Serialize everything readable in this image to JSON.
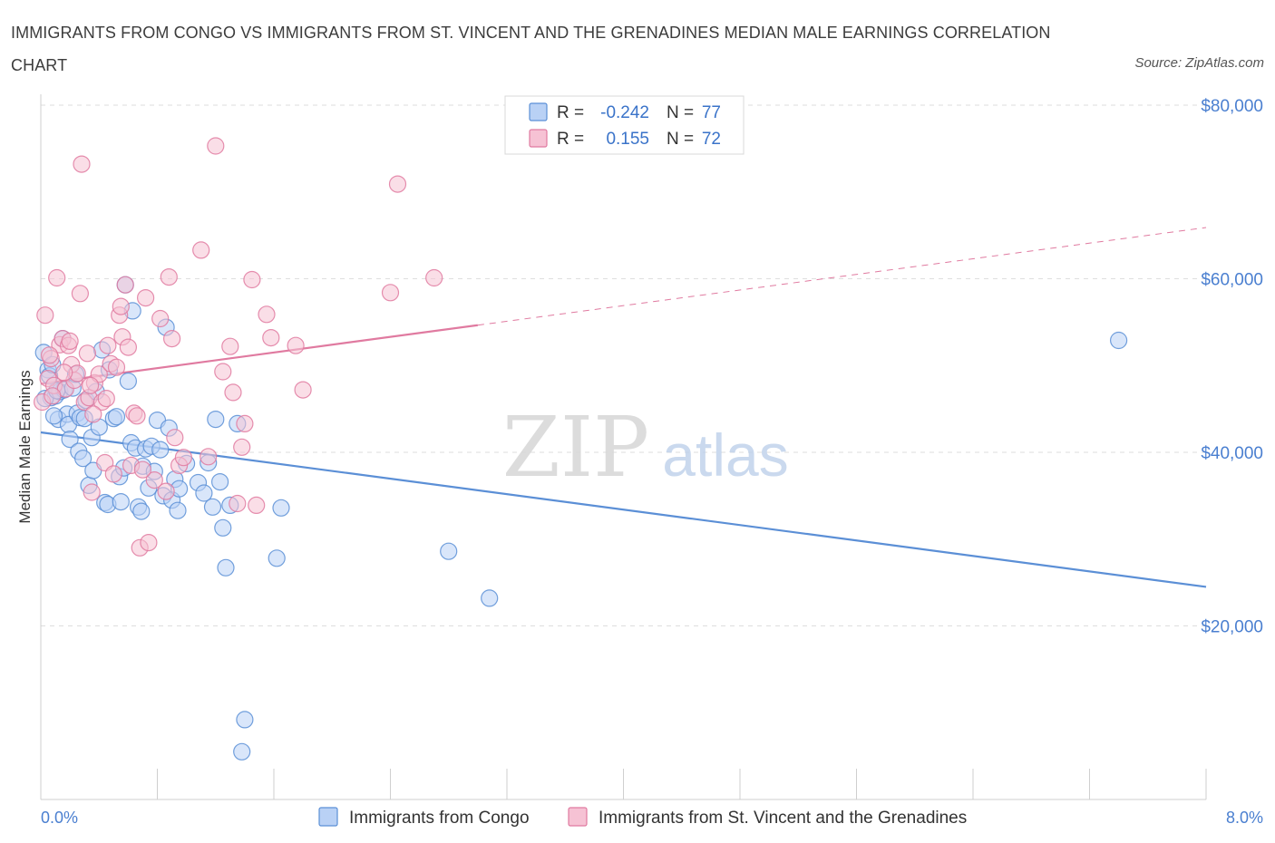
{
  "title": "IMMIGRANTS FROM CONGO VS IMMIGRANTS FROM ST. VINCENT AND THE GRENADINES MEDIAN MALE EARNINGS CORRELATION CHART",
  "source": "Source: ZipAtlas.com",
  "watermark": {
    "zip": "ZIP",
    "atlas": "atlas"
  },
  "legend": {
    "r_label": "R =",
    "n_label": "N =",
    "rows": [
      {
        "r": "-0.242",
        "n": "77",
        "color": "#5b8fd6",
        "fill": "#b9d1f5"
      },
      {
        "r": "0.155",
        "n": "72",
        "color": "#e07aa0",
        "fill": "#f6c2d4"
      }
    ]
  },
  "bottom_legend": [
    "Immigrants from Congo",
    "Immigrants from St. Vincent and the Grenadines"
  ],
  "chart_data": {
    "type": "scatter",
    "title": "IMMIGRANTS FROM CONGO VS IMMIGRANTS FROM ST. VINCENT AND THE GRENADINES MEDIAN MALE EARNINGS CORRELATION CHART",
    "xlabel": "",
    "ylabel": "Median Male Earnings",
    "xlim": [
      0,
      8
    ],
    "ylim": [
      0,
      80000
    ],
    "x_tick_labels": [
      "0.0%",
      "8.0%"
    ],
    "y_ticks": [
      20000,
      40000,
      60000,
      80000
    ],
    "y_tick_labels": [
      "$20,000",
      "$40,000",
      "$60,000",
      "$80,000"
    ],
    "grid": true,
    "series": [
      {
        "name": "Immigrants from Congo",
        "color": "#5b8fd6",
        "fill": "#b9d1f5",
        "trend": {
          "x0": 0.0,
          "y0": 42300,
          "x1": 8.0,
          "y1": 24500,
          "dashed_from": null
        },
        "points": [
          [
            0.02,
            51500
          ],
          [
            0.05,
            49500
          ],
          [
            0.06,
            48800
          ],
          [
            0.07,
            46300
          ],
          [
            0.08,
            50100
          ],
          [
            0.1,
            46500
          ],
          [
            0.12,
            43800
          ],
          [
            0.13,
            47000
          ],
          [
            0.15,
            53100
          ],
          [
            0.16,
            47200
          ],
          [
            0.18,
            44400
          ],
          [
            0.19,
            43200
          ],
          [
            0.2,
            41500
          ],
          [
            0.22,
            47400
          ],
          [
            0.24,
            49000
          ],
          [
            0.25,
            44500
          ],
          [
            0.26,
            40100
          ],
          [
            0.27,
            44000
          ],
          [
            0.29,
            39300
          ],
          [
            0.3,
            43900
          ],
          [
            0.31,
            46000
          ],
          [
            0.33,
            36200
          ],
          [
            0.35,
            41700
          ],
          [
            0.36,
            37900
          ],
          [
            0.38,
            47000
          ],
          [
            0.4,
            42900
          ],
          [
            0.42,
            51800
          ],
          [
            0.44,
            34200
          ],
          [
            0.46,
            34000
          ],
          [
            0.47,
            49500
          ],
          [
            0.5,
            43900
          ],
          [
            0.52,
            44100
          ],
          [
            0.54,
            37200
          ],
          [
            0.55,
            34300
          ],
          [
            0.57,
            38200
          ],
          [
            0.58,
            59300
          ],
          [
            0.6,
            48200
          ],
          [
            0.62,
            41100
          ],
          [
            0.63,
            56300
          ],
          [
            0.65,
            40500
          ],
          [
            0.67,
            33700
          ],
          [
            0.69,
            33200
          ],
          [
            0.7,
            38400
          ],
          [
            0.72,
            40400
          ],
          [
            0.74,
            35900
          ],
          [
            0.76,
            40700
          ],
          [
            0.78,
            37800
          ],
          [
            0.8,
            43700
          ],
          [
            0.82,
            40300
          ],
          [
            0.84,
            35000
          ],
          [
            0.86,
            54400
          ],
          [
            0.88,
            42800
          ],
          [
            0.9,
            34500
          ],
          [
            0.92,
            36900
          ],
          [
            0.94,
            33300
          ],
          [
            0.95,
            35800
          ],
          [
            1.0,
            38700
          ],
          [
            1.08,
            36500
          ],
          [
            1.12,
            35300
          ],
          [
            1.15,
            38800
          ],
          [
            1.18,
            33700
          ],
          [
            1.2,
            43800
          ],
          [
            1.23,
            36600
          ],
          [
            1.25,
            31300
          ],
          [
            1.27,
            26700
          ],
          [
            1.3,
            33900
          ],
          [
            1.35,
            43300
          ],
          [
            1.4,
            9200
          ],
          [
            1.62,
            27800
          ],
          [
            1.65,
            33600
          ],
          [
            1.38,
            5500
          ],
          [
            2.8,
            28600
          ],
          [
            3.08,
            23200
          ],
          [
            7.4,
            52900
          ],
          [
            0.03,
            46200
          ],
          [
            0.09,
            44200
          ],
          [
            0.11,
            47100
          ]
        ]
      },
      {
        "name": "Immigrants from St. Vincent and the Grenadines",
        "color": "#e07aa0",
        "fill": "#f6c2d4",
        "trend": {
          "x0": 0.0,
          "y0": 47900,
          "x1": 8.0,
          "y1": 65900,
          "dashed_from": 3.0
        },
        "points": [
          [
            0.01,
            45800
          ],
          [
            0.03,
            55800
          ],
          [
            0.05,
            48500
          ],
          [
            0.07,
            50800
          ],
          [
            0.09,
            47700
          ],
          [
            0.11,
            60100
          ],
          [
            0.13,
            52400
          ],
          [
            0.15,
            53100
          ],
          [
            0.17,
            47300
          ],
          [
            0.19,
            52300
          ],
          [
            0.21,
            50100
          ],
          [
            0.23,
            48300
          ],
          [
            0.25,
            49100
          ],
          [
            0.27,
            58300
          ],
          [
            0.28,
            73200
          ],
          [
            0.3,
            45800
          ],
          [
            0.32,
            51400
          ],
          [
            0.33,
            46300
          ],
          [
            0.35,
            35400
          ],
          [
            0.37,
            48000
          ],
          [
            0.4,
            49000
          ],
          [
            0.42,
            45800
          ],
          [
            0.44,
            38800
          ],
          [
            0.46,
            52300
          ],
          [
            0.48,
            50200
          ],
          [
            0.5,
            37500
          ],
          [
            0.52,
            49800
          ],
          [
            0.54,
            55800
          ],
          [
            0.56,
            53300
          ],
          [
            0.58,
            59300
          ],
          [
            0.6,
            52100
          ],
          [
            0.62,
            38500
          ],
          [
            0.64,
            44500
          ],
          [
            0.66,
            44200
          ],
          [
            0.68,
            29000
          ],
          [
            0.72,
            57800
          ],
          [
            0.74,
            29600
          ],
          [
            0.78,
            36800
          ],
          [
            0.82,
            55400
          ],
          [
            0.86,
            35500
          ],
          [
            0.88,
            60200
          ],
          [
            0.9,
            53100
          ],
          [
            0.92,
            41700
          ],
          [
            0.95,
            38500
          ],
          [
            0.98,
            39400
          ],
          [
            1.1,
            63300
          ],
          [
            1.15,
            39500
          ],
          [
            1.2,
            75300
          ],
          [
            1.25,
            49300
          ],
          [
            1.3,
            52200
          ],
          [
            1.32,
            46900
          ],
          [
            1.35,
            34100
          ],
          [
            1.38,
            40600
          ],
          [
            1.4,
            43300
          ],
          [
            1.45,
            59900
          ],
          [
            1.55,
            55900
          ],
          [
            1.58,
            53200
          ],
          [
            1.75,
            52300
          ],
          [
            1.8,
            47200
          ],
          [
            2.4,
            58400
          ],
          [
            2.45,
            70900
          ],
          [
            2.7,
            60100
          ],
          [
            0.08,
            46500
          ],
          [
            0.16,
            49200
          ],
          [
            0.34,
            47700
          ],
          [
            0.45,
            46200
          ],
          [
            0.55,
            56800
          ],
          [
            0.06,
            51200
          ],
          [
            0.36,
            44400
          ],
          [
            0.7,
            38000
          ],
          [
            1.48,
            33900
          ],
          [
            0.2,
            52800
          ]
        ]
      }
    ]
  }
}
